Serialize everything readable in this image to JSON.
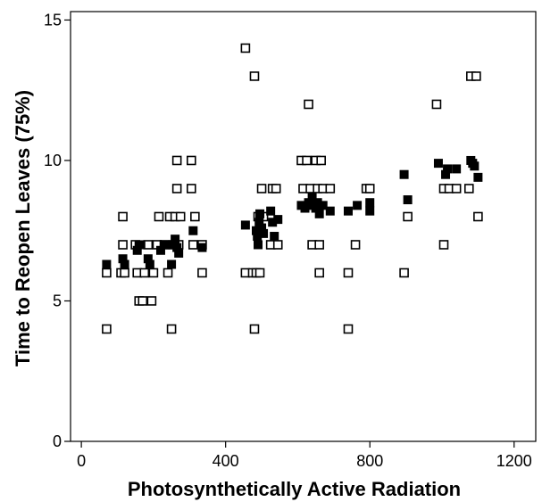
{
  "chart_data": {
    "type": "scatter",
    "xlabel": "Photosynthetically Active Radiation",
    "ylabel": "Time to Reopen Leaves (75%)",
    "xlim": [
      -30,
      1260
    ],
    "ylim": [
      0,
      15.3
    ],
    "xticks": [
      0,
      400,
      800,
      1200
    ],
    "yticks": [
      0,
      5,
      10,
      15
    ],
    "grid": false,
    "legend": "none",
    "series": [
      {
        "marker": "open-square",
        "color": "#000000",
        "points": [
          [
            70,
            4
          ],
          [
            70,
            6
          ],
          [
            110,
            6
          ],
          [
            115,
            8
          ],
          [
            115,
            7
          ],
          [
            120,
            6
          ],
          [
            150,
            7
          ],
          [
            155,
            6
          ],
          [
            160,
            5
          ],
          [
            170,
            5
          ],
          [
            175,
            6
          ],
          [
            185,
            7
          ],
          [
            195,
            5
          ],
          [
            200,
            6
          ],
          [
            210,
            7
          ],
          [
            215,
            8
          ],
          [
            230,
            7
          ],
          [
            240,
            6
          ],
          [
            245,
            8
          ],
          [
            250,
            4
          ],
          [
            255,
            7
          ],
          [
            260,
            8
          ],
          [
            265,
            9
          ],
          [
            265,
            10
          ],
          [
            270,
            7
          ],
          [
            275,
            8
          ],
          [
            305,
            10
          ],
          [
            305,
            9
          ],
          [
            310,
            7
          ],
          [
            315,
            8
          ],
          [
            335,
            6
          ],
          [
            335,
            7
          ],
          [
            455,
            14
          ],
          [
            455,
            6
          ],
          [
            475,
            6
          ],
          [
            480,
            13
          ],
          [
            480,
            4
          ],
          [
            485,
            6
          ],
          [
            490,
            8
          ],
          [
            495,
            6
          ],
          [
            500,
            9
          ],
          [
            505,
            8
          ],
          [
            525,
            7
          ],
          [
            530,
            9
          ],
          [
            540,
            9
          ],
          [
            545,
            7
          ],
          [
            610,
            10
          ],
          [
            615,
            9
          ],
          [
            625,
            10
          ],
          [
            630,
            12
          ],
          [
            635,
            9
          ],
          [
            640,
            7
          ],
          [
            650,
            10
          ],
          [
            655,
            9
          ],
          [
            660,
            7
          ],
          [
            660,
            6
          ],
          [
            665,
            10
          ],
          [
            670,
            9
          ],
          [
            690,
            9
          ],
          [
            740,
            6
          ],
          [
            740,
            4
          ],
          [
            760,
            7
          ],
          [
            790,
            9
          ],
          [
            800,
            9
          ],
          [
            895,
            6
          ],
          [
            905,
            8
          ],
          [
            985,
            12
          ],
          [
            1005,
            7
          ],
          [
            1005,
            9
          ],
          [
            1020,
            9
          ],
          [
            1040,
            9
          ],
          [
            1075,
            9
          ],
          [
            1080,
            13
          ],
          [
            1095,
            13
          ],
          [
            1100,
            8
          ]
        ]
      },
      {
        "marker": "filled-square",
        "color": "#000000",
        "points": [
          [
            70,
            6.3
          ],
          [
            115,
            6.5
          ],
          [
            120,
            6.3
          ],
          [
            155,
            6.8
          ],
          [
            160,
            7
          ],
          [
            165,
            7
          ],
          [
            185,
            6.5
          ],
          [
            190,
            6.3
          ],
          [
            220,
            6.8
          ],
          [
            230,
            7
          ],
          [
            250,
            6.3
          ],
          [
            255,
            7
          ],
          [
            260,
            7.2
          ],
          [
            265,
            6.9
          ],
          [
            270,
            6.7
          ],
          [
            310,
            7.5
          ],
          [
            335,
            6.9
          ],
          [
            455,
            7.7
          ],
          [
            485,
            7.5
          ],
          [
            488,
            7.3
          ],
          [
            490,
            7
          ],
          [
            493,
            7.8
          ],
          [
            495,
            8.1
          ],
          [
            500,
            7.6
          ],
          [
            505,
            7.4
          ],
          [
            525,
            8.2
          ],
          [
            530,
            7.8
          ],
          [
            535,
            7.3
          ],
          [
            545,
            7.9
          ],
          [
            610,
            8.4
          ],
          [
            620,
            8.3
          ],
          [
            630,
            8.5
          ],
          [
            635,
            8.4
          ],
          [
            640,
            8.7
          ],
          [
            650,
            8.3
          ],
          [
            655,
            8.5
          ],
          [
            660,
            8.1
          ],
          [
            670,
            8.4
          ],
          [
            690,
            8.2
          ],
          [
            740,
            8.2
          ],
          [
            765,
            8.4
          ],
          [
            800,
            8.5
          ],
          [
            800,
            8.2
          ],
          [
            895,
            9.5
          ],
          [
            905,
            8.6
          ],
          [
            990,
            9.9
          ],
          [
            1010,
            9.5
          ],
          [
            1015,
            9.7
          ],
          [
            1040,
            9.7
          ],
          [
            1080,
            10
          ],
          [
            1085,
            9.9
          ],
          [
            1090,
            9.8
          ],
          [
            1100,
            9.4
          ]
        ]
      }
    ]
  }
}
